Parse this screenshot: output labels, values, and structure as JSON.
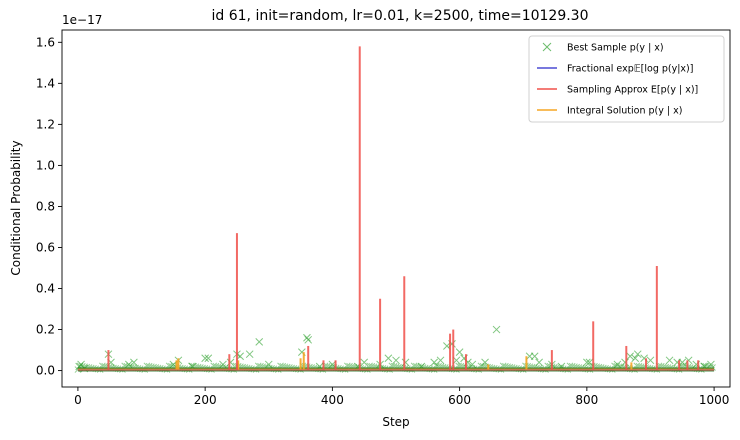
{
  "chart_data": {
    "type": "line",
    "title": "id 61, init=random, lr=0.01, k=2500, time=10129.30",
    "xlabel": "Step",
    "ylabel": "Conditional Probability",
    "y_scale_label": "1e−17",
    "xlim": [
      -25,
      1025
    ],
    "ylim": [
      -0.08,
      1.66
    ],
    "x_ticks": [
      0,
      200,
      400,
      600,
      800,
      1000
    ],
    "y_ticks": [
      0.0,
      0.2,
      0.4,
      0.6,
      0.8,
      1.0,
      1.2,
      1.4,
      1.6
    ],
    "x_tick_labels": [
      "0",
      "200",
      "400",
      "600",
      "800",
      "1000"
    ],
    "y_tick_labels": [
      "0.0",
      "0.2",
      "0.4",
      "0.6",
      "0.8",
      "1.0",
      "1.2",
      "1.4",
      "1.6"
    ],
    "legend_position": "top-right",
    "baseline": 0.005,
    "series": [
      {
        "name": "Best Sample $p(y \\mid x)$",
        "legend_label": "Best Sample p(y | x)",
        "style": "x-markers",
        "color": "#2ca02c",
        "points": [
          [
            2,
            0.02
          ],
          [
            5,
            0.03
          ],
          [
            10,
            0.01
          ],
          [
            48,
            0.08
          ],
          [
            52,
            0.04
          ],
          [
            80,
            0.03
          ],
          [
            88,
            0.04
          ],
          [
            150,
            0.03
          ],
          [
            158,
            0.05
          ],
          [
            180,
            0.02
          ],
          [
            200,
            0.06
          ],
          [
            205,
            0.06
          ],
          [
            228,
            0.03
          ],
          [
            240,
            0.04
          ],
          [
            250,
            0.08
          ],
          [
            255,
            0.07
          ],
          [
            270,
            0.08
          ],
          [
            285,
            0.14
          ],
          [
            300,
            0.03
          ],
          [
            352,
            0.09
          ],
          [
            360,
            0.16
          ],
          [
            362,
            0.15
          ],
          [
            380,
            0.02
          ],
          [
            400,
            0.03
          ],
          [
            440,
            0.02
          ],
          [
            450,
            0.04
          ],
          [
            475,
            0.03
          ],
          [
            488,
            0.06
          ],
          [
            500,
            0.05
          ],
          [
            515,
            0.04
          ],
          [
            540,
            0.02
          ],
          [
            560,
            0.04
          ],
          [
            570,
            0.05
          ],
          [
            580,
            0.12
          ],
          [
            588,
            0.13
          ],
          [
            595,
            0.05
          ],
          [
            600,
            0.09
          ],
          [
            607,
            0.06
          ],
          [
            613,
            0.04
          ],
          [
            620,
            0.03
          ],
          [
            640,
            0.04
          ],
          [
            658,
            0.2
          ],
          [
            710,
            0.07
          ],
          [
            718,
            0.07
          ],
          [
            725,
            0.04
          ],
          [
            745,
            0.03
          ],
          [
            760,
            0.02
          ],
          [
            800,
            0.04
          ],
          [
            804,
            0.04
          ],
          [
            848,
            0.03
          ],
          [
            860,
            0.04
          ],
          [
            868,
            0.07
          ],
          [
            876,
            0.06
          ],
          [
            880,
            0.08
          ],
          [
            890,
            0.06
          ],
          [
            900,
            0.05
          ],
          [
            930,
            0.05
          ],
          [
            942,
            0.04
          ],
          [
            950,
            0.04
          ],
          [
            960,
            0.05
          ],
          [
            972,
            0.03
          ],
          [
            985,
            0.02
          ],
          [
            995,
            0.03
          ]
        ]
      },
      {
        "name": "Fractional $\\exp\\mathbb{E}[\\log p(y|x)]$",
        "legend_label": "Fractional exp𝔼[log p(y|x)]",
        "style": "line",
        "color": "#4c4cd4",
        "spikes": []
      },
      {
        "name": "Sampling Approx $E[p(y \\mid x)]$",
        "legend_label": "Sampling Approx E[p(y | x)]",
        "style": "line",
        "color": "#f0504a",
        "spikes": [
          [
            48,
            0.1
          ],
          [
            238,
            0.08
          ],
          [
            250,
            0.67
          ],
          [
            362,
            0.12
          ],
          [
            386,
            0.05
          ],
          [
            405,
            0.05
          ],
          [
            443,
            1.58
          ],
          [
            475,
            0.35
          ],
          [
            513,
            0.46
          ],
          [
            585,
            0.18
          ],
          [
            590,
            0.2
          ],
          [
            610,
            0.08
          ],
          [
            745,
            0.1
          ],
          [
            810,
            0.24
          ],
          [
            862,
            0.12
          ],
          [
            893,
            0.06
          ],
          [
            910,
            0.51
          ],
          [
            945,
            0.05
          ],
          [
            958,
            0.05
          ],
          [
            975,
            0.05
          ]
        ]
      },
      {
        "name": "Integral Solution $p(y \\mid x)$",
        "legend_label": "Integral Solution p(y | x)",
        "style": "line",
        "color": "#f5a623",
        "spikes": [
          [
            155,
            0.05
          ],
          [
            158,
            0.06
          ],
          [
            252,
            0.05
          ],
          [
            350,
            0.06
          ],
          [
            355,
            0.09
          ],
          [
            645,
            0.03
          ],
          [
            705,
            0.07
          ],
          [
            870,
            0.04
          ]
        ]
      }
    ]
  }
}
